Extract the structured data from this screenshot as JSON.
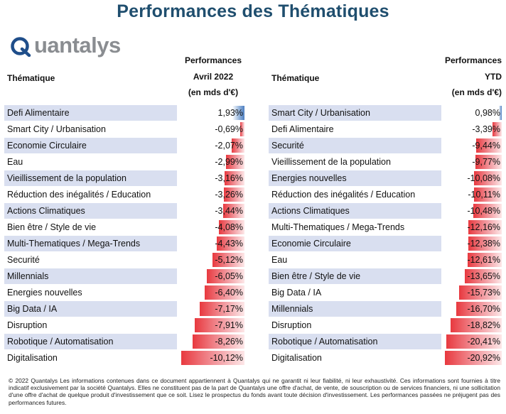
{
  "title": "Performances des Thématiques",
  "logo": {
    "text": "uantalys",
    "icon": "quantalys-q-logo"
  },
  "left_table": {
    "col_name_header": "Thématique",
    "col_value_header": [
      "Performances",
      "Avril 2022",
      "(en mds d'€)"
    ],
    "rows": [
      {
        "name": "Defi Alimentaire",
        "value": "1,93%",
        "num": 1.93
      },
      {
        "name": "Smart City / Urbanisation",
        "value": "-0,69%",
        "num": -0.69
      },
      {
        "name": "Economie Circulaire",
        "value": "-2,07%",
        "num": -2.07
      },
      {
        "name": "Eau",
        "value": "-2,99%",
        "num": -2.99
      },
      {
        "name": "Vieillissement de la population",
        "value": "-3,16%",
        "num": -3.16
      },
      {
        "name": "Réduction des inégalités / Education",
        "value": "-3,26%",
        "num": -3.26
      },
      {
        "name": "Actions Climatiques",
        "value": "-3,44%",
        "num": -3.44
      },
      {
        "name": "Bien être / Style de vie",
        "value": "-4,08%",
        "num": -4.08
      },
      {
        "name": "Multi-Thematiques / Mega-Trends",
        "value": "-4,43%",
        "num": -4.43
      },
      {
        "name": "Securité",
        "value": "-5,12%",
        "num": -5.12
      },
      {
        "name": "Millennials",
        "value": "-6,05%",
        "num": -6.05
      },
      {
        "name": "Energies nouvelles",
        "value": "-6,40%",
        "num": -6.4
      },
      {
        "name": "Big Data / IA",
        "value": "-7,17%",
        "num": -7.17
      },
      {
        "name": "Disruption",
        "value": "-7,91%",
        "num": -7.91
      },
      {
        "name": "Robotique / Automatisation",
        "value": "-8,26%",
        "num": -8.26
      },
      {
        "name": "Digitalisation",
        "value": "-10,12%",
        "num": -10.12
      }
    ]
  },
  "right_table": {
    "col_name_header": "Thématique",
    "col_value_header": [
      "Performances",
      "YTD",
      "(en mds d'€)"
    ],
    "rows": [
      {
        "name": "Smart City / Urbanisation",
        "value": "0,98%",
        "num": 0.98
      },
      {
        "name": "Defi Alimentaire",
        "value": "-3,39%",
        "num": -3.39
      },
      {
        "name": "Securité",
        "value": "-9,44%",
        "num": -9.44
      },
      {
        "name": "Vieillissement de la population",
        "value": "-9,77%",
        "num": -9.77
      },
      {
        "name": "Energies nouvelles",
        "value": "-10,08%",
        "num": -10.08
      },
      {
        "name": "Réduction des inégalités / Education",
        "value": "-10,11%",
        "num": -10.11
      },
      {
        "name": "Actions Climatiques",
        "value": "-10,48%",
        "num": -10.48
      },
      {
        "name": "Multi-Thematiques / Mega-Trends",
        "value": "-12,16%",
        "num": -12.16
      },
      {
        "name": "Economie Circulaire",
        "value": "-12,38%",
        "num": -12.38
      },
      {
        "name": "Eau",
        "value": "-12,61%",
        "num": -12.61
      },
      {
        "name": "Bien être / Style de vie",
        "value": "-13,65%",
        "num": -13.65
      },
      {
        "name": "Big Data / IA",
        "value": "-15,73%",
        "num": -15.73
      },
      {
        "name": "Millennials",
        "value": "-16,70%",
        "num": -16.7
      },
      {
        "name": "Disruption",
        "value": "-18,82%",
        "num": -18.82
      },
      {
        "name": "Robotique / Automatisation",
        "value": "-20,41%",
        "num": -20.41
      },
      {
        "name": "Digitalisation",
        "value": "-20,92%",
        "num": -20.92
      }
    ]
  },
  "colors": {
    "title": "#1f4e6e",
    "row_shade": "#d9dff0",
    "negative_bar": "#e8393f",
    "positive_bar": "#4e7fc1"
  },
  "footer": "© 2022 Quantalys Les informations contenues dans ce document appartiennent à Quantalys qui ne garantit ni leur fiabilité, ni leur exhaustivité. Ces informations sont fournies à titre indicatif exclusivement par la société Quantalys. Elles ne constituent pas de la part de Quantalys une offre d'achat, de vente, de souscription ou de services financiers, ni une sollicitation d'une offre d'achat de quelque produit d'investissement que ce soit. Lisez le prospectus du fonds avant toute décision d'investissement. Les performances passées ne préjugent pas des performances futures."
}
